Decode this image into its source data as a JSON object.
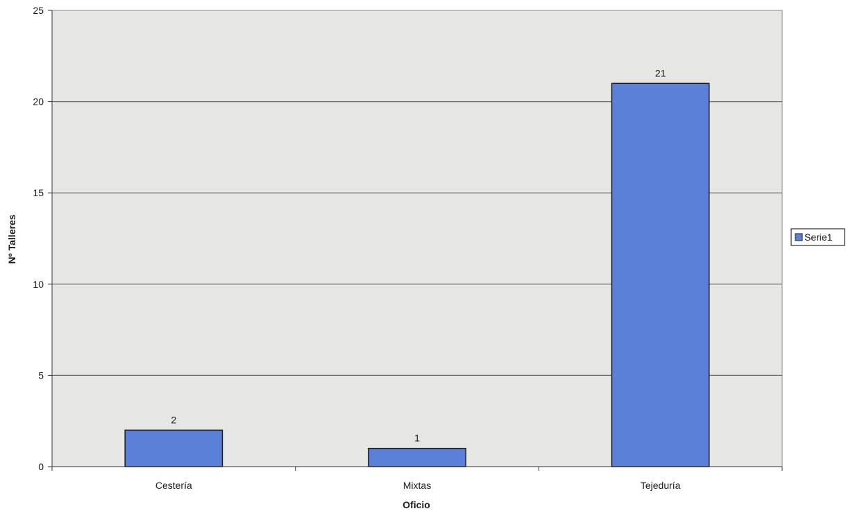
{
  "chart_data": {
    "type": "bar",
    "categories": [
      "Cestería",
      "Mixtas",
      "Tejeduría"
    ],
    "series": [
      {
        "name": "Serie1",
        "values": [
          2,
          1,
          21
        ]
      }
    ],
    "title": "",
    "xlabel": "Oficio",
    "ylabel": "Nº Talleres",
    "ylim": [
      0,
      25
    ],
    "yticks": [
      0,
      5,
      10,
      15,
      20,
      25
    ],
    "grid": true,
    "legend_position": "right",
    "colors": {
      "bar_fill": "#5b80d8",
      "bar_stroke": "#1a1a1a",
      "plot_background": "#e6e6e2",
      "gridline": "#6b6b6b"
    }
  }
}
